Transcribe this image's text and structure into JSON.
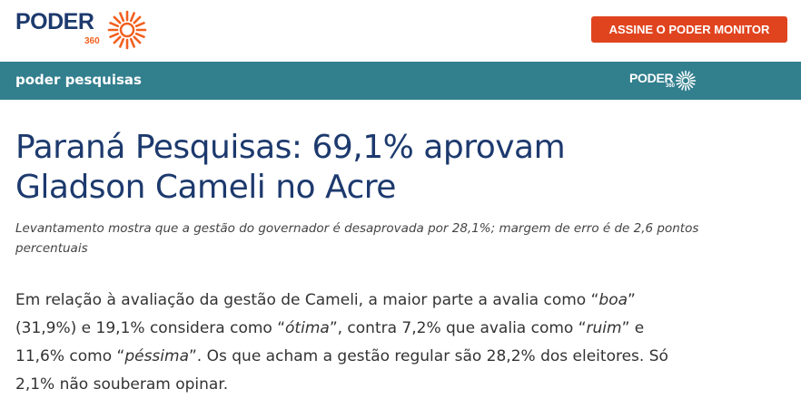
{
  "header": {
    "logo": {
      "text": "PODER",
      "suffix": "360"
    },
    "button": "ASSINE O PODER MONITOR"
  },
  "section_bar": {
    "label": "poder pesquisas",
    "logo": {
      "text": "PODER",
      "suffix": "360"
    }
  },
  "article": {
    "title": "Paraná Pesquisas: 69,1% aprovam Gladson Cameli no Acre",
    "subtitle": "Levantamento mostra que a gestão do governador é desaprovada por 28,1%; margem de erro é de 2,6 pontos percentuais",
    "body": {
      "segments": [
        "Em relação à avaliação da gestão de Cameli, a maior parte a avalia como “",
        "boa",
        "” (31,9%) e 19,1% considera como “",
        "ótima",
        "”, contra 7,2% que avalia como “",
        "ruim",
        "” e 11,6% como “",
        "péssima",
        "”. Os que acham a gestão regular são 28,2% dos eleitores. Só 2,1% não souberam opinar."
      ]
    }
  }
}
